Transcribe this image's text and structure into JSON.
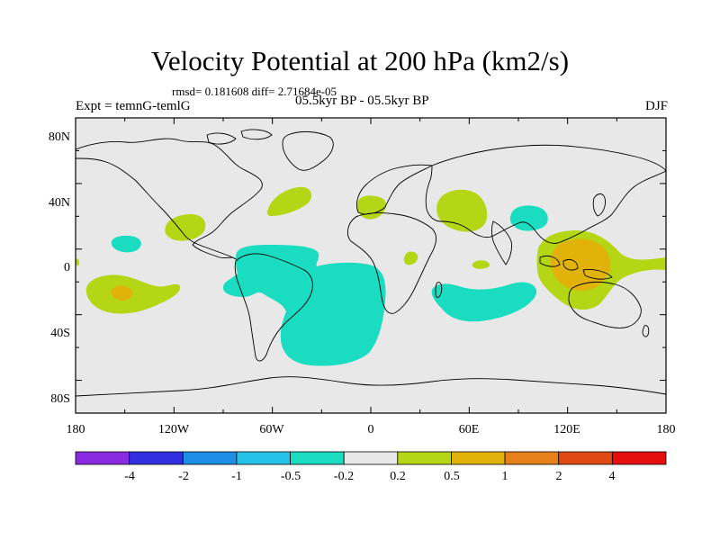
{
  "header": {
    "title": "Velocity Potential at 200 hPa (km2/s)",
    "stats": "rmsd= 0.181608 diff= 2.71684e-05",
    "experiment": "Expt = temnG-temlG",
    "period": "05.5kyr BP - 05.5kyr BP",
    "season": "DJF"
  },
  "axes": {
    "lat_labels": [
      "80N",
      "40N",
      "0",
      "40S",
      "80S"
    ],
    "lon_labels": [
      "180",
      "120W",
      "60W",
      "0",
      "60E",
      "120E",
      "180"
    ]
  },
  "colorbar": {
    "colors": [
      "#8a2be2",
      "#3030e0",
      "#1e8fe6",
      "#27c2e8",
      "#19dcc0",
      "#e8e8e8",
      "#b4d615",
      "#e0b20a",
      "#e68018",
      "#e04814",
      "#e60e0e"
    ],
    "labels": [
      "-4",
      "-2",
      "-1",
      "-0.5",
      "-0.2",
      "0.2",
      "0.5",
      "1",
      "2",
      "4"
    ]
  },
  "map_colors": {
    "background": "#e8e8e8",
    "coast": "#000000",
    "positive_weak": "#b4d615",
    "positive_mid": "#e0b20a",
    "positive_strong": "#e68018",
    "negative_weak": "#19dcc0",
    "negative_mid": "#27c2e8"
  }
}
